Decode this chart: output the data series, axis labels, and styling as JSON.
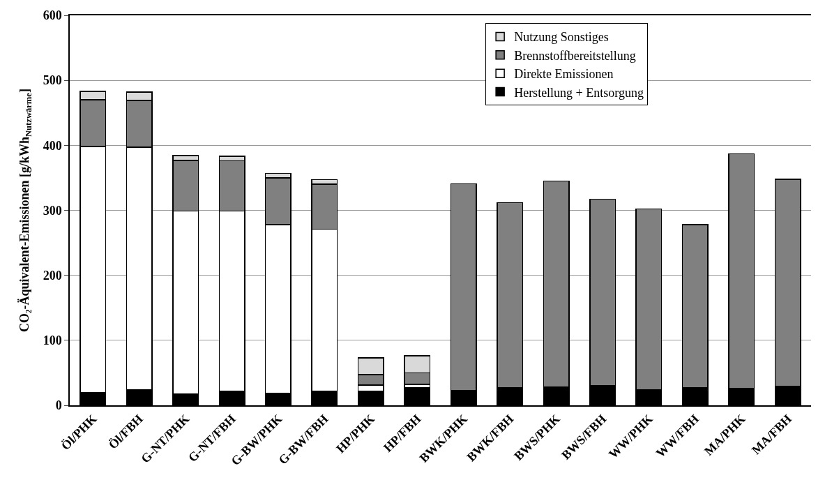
{
  "chart_data": {
    "type": "bar",
    "stacked": true,
    "ylabel": "CO₂-Äquivalent-Emissionen [g/kWh$_{Nutzwärme}$]",
    "categories": [
      "Öl/PHK",
      "Öl/FBH",
      "G-NT/PHK",
      "G-NT/FBH",
      "G-BW/PHK",
      "G-BW/FBH",
      "HP/PHK",
      "HP/FBH",
      "BWK/PHK",
      "BWK/FBH",
      "BWS/PHK",
      "BWS/FBH",
      "WW/PHK",
      "WW/FBH",
      "MA/PHK",
      "MA/FBH"
    ],
    "series": [
      {
        "name": "Herstellung + Entsorgung",
        "color": "#000000",
        "values": [
          20,
          24,
          17,
          22,
          18,
          22,
          22,
          27,
          23,
          27,
          28,
          30,
          24,
          27,
          26,
          29
        ]
      },
      {
        "name": "Direkte Emissionen",
        "color": "#ffffff",
        "values": [
          378,
          373,
          282,
          277,
          260,
          249,
          9,
          5,
          null,
          null,
          null,
          null,
          null,
          null,
          null,
          null
        ]
      },
      {
        "name": "Brennstoffbereitstellung",
        "color": "#808080",
        "values": [
          72,
          72,
          78,
          77,
          72,
          69,
          16,
          18,
          318,
          285,
          317,
          287,
          278,
          251,
          361,
          319
        ]
      },
      {
        "name": "Nutzung Sonstiges",
        "color": "#d9d9d9",
        "values": [
          13,
          13,
          7,
          7,
          7,
          7,
          26,
          26,
          null,
          null,
          null,
          null,
          null,
          null,
          null,
          null
        ]
      }
    ],
    "ylim": [
      0,
      600
    ],
    "yticks": [
      0,
      100,
      200,
      300,
      400,
      500,
      600
    ],
    "grid": "y",
    "legend": "top right"
  }
}
